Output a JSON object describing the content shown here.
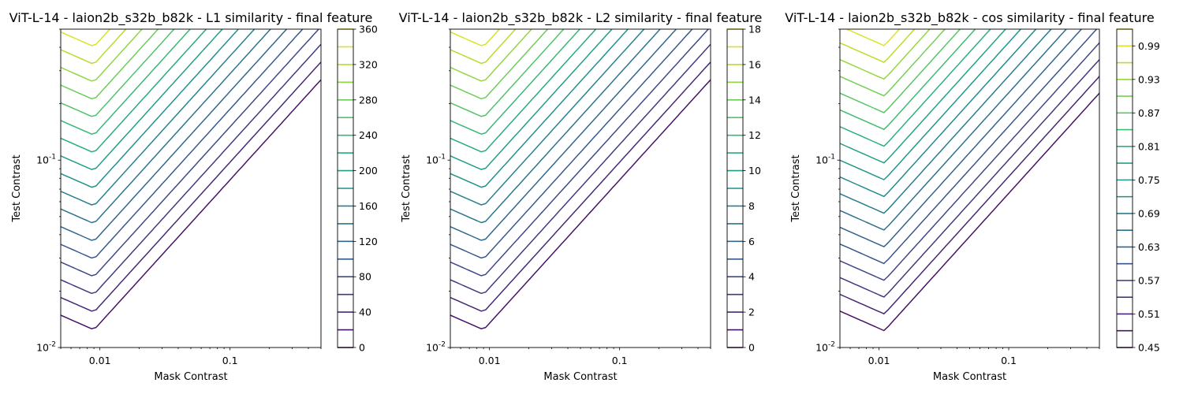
{
  "chart_data": [
    {
      "type": "contour",
      "title": "ViT-L-14 - laion2b_s32b_b82k - L1 similarity - final feature",
      "xlabel": "Mask Contrast",
      "ylabel": "Test Contrast",
      "xscale": "log",
      "yscale": "log",
      "xlim": [
        0.005,
        0.5
      ],
      "ylim": [
        0.01,
        0.5
      ],
      "xticks": [
        {
          "value": 0.01,
          "label": "0.01"
        },
        {
          "value": 0.1,
          "label": "0.1"
        }
      ],
      "yticks": [
        {
          "value": 0.01,
          "label": "10^-2"
        },
        {
          "value": 0.1,
          "label": "10^-1"
        }
      ],
      "colormap": "viridis",
      "levels": [
        0,
        20,
        40,
        60,
        80,
        100,
        120,
        140,
        160,
        180,
        200,
        220,
        240,
        260,
        280,
        300,
        320,
        340,
        360
      ],
      "colorbar_ticks": [
        "0",
        "40",
        "80",
        "120",
        "160",
        "200",
        "240",
        "280",
        "320",
        "360"
      ],
      "valley_x": 0.009
    },
    {
      "type": "contour",
      "title": "ViT-L-14 - laion2b_s32b_b82k - L2 similarity - final feature",
      "xlabel": "Mask Contrast",
      "ylabel": "Test Contrast",
      "xscale": "log",
      "yscale": "log",
      "xlim": [
        0.005,
        0.5
      ],
      "ylim": [
        0.01,
        0.5
      ],
      "xticks": [
        {
          "value": 0.01,
          "label": "0.01"
        },
        {
          "value": 0.1,
          "label": "0.1"
        }
      ],
      "yticks": [
        {
          "value": 0.01,
          "label": "10^-2"
        },
        {
          "value": 0.1,
          "label": "10^-1"
        }
      ],
      "colormap": "viridis",
      "levels": [
        0,
        1,
        2,
        3,
        4,
        5,
        6,
        7,
        8,
        9,
        10,
        11,
        12,
        13,
        14,
        15,
        16,
        17,
        18
      ],
      "colorbar_ticks": [
        "0",
        "2",
        "4",
        "6",
        "8",
        "10",
        "12",
        "14",
        "16",
        "18"
      ],
      "valley_x": 0.009
    },
    {
      "type": "contour",
      "title": "ViT-L-14 - laion2b_s32b_b82k - cos similarity - final feature",
      "xlabel": "Mask Contrast",
      "ylabel": "Test Contrast",
      "xscale": "log",
      "yscale": "log",
      "xlim": [
        0.005,
        0.5
      ],
      "ylim": [
        0.01,
        0.5
      ],
      "xticks": [
        {
          "value": 0.01,
          "label": "0.01"
        },
        {
          "value": 0.1,
          "label": "0.1"
        }
      ],
      "yticks": [
        {
          "value": 0.01,
          "label": "10^-2"
        },
        {
          "value": 0.1,
          "label": "10^-1"
        }
      ],
      "colormap": "viridis",
      "levels": [
        0.45,
        0.48,
        0.51,
        0.54,
        0.57,
        0.6,
        0.63,
        0.66,
        0.69,
        0.72,
        0.75,
        0.78,
        0.81,
        0.84,
        0.87,
        0.9,
        0.93,
        0.96,
        0.99,
        1.02
      ],
      "colorbar_ticks": [
        "0.45",
        "0.51",
        "0.57",
        "0.63",
        "0.69",
        "0.75",
        "0.81",
        "0.87",
        "0.93",
        "0.99"
      ],
      "valley_x": 0.011
    }
  ]
}
